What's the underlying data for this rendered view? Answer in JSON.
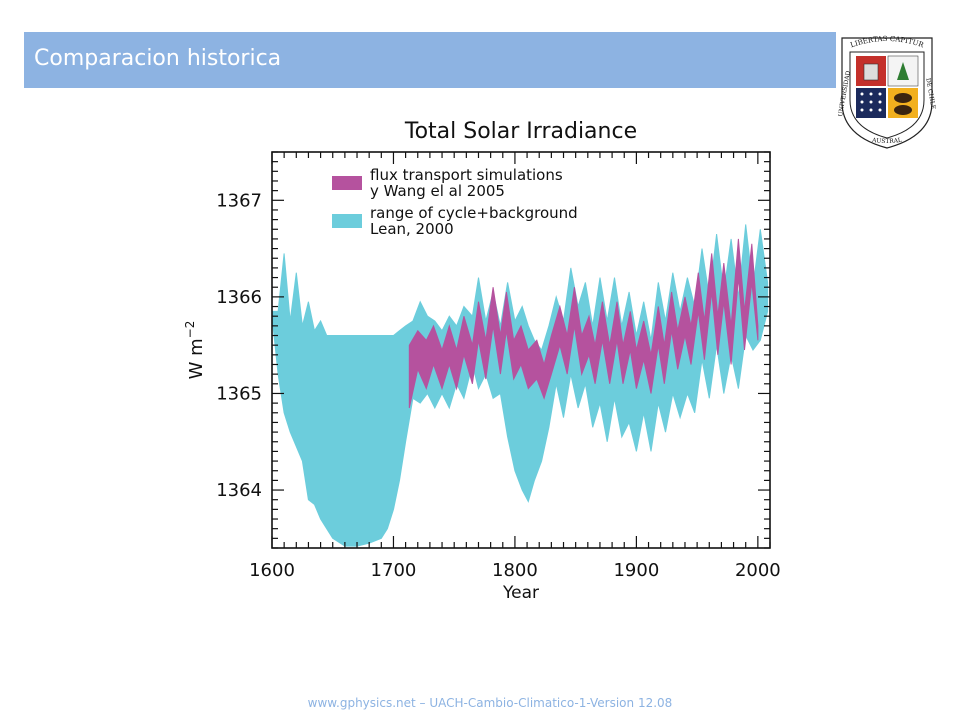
{
  "slide": {
    "title": "Comparacion historica",
    "footer": "www.gphysics.net – UACH-Cambio-Climatico-1-Version 12.08"
  },
  "logo": {
    "top_text": "LIBERTAS CAPITUR",
    "left_text": "UNIVERSIDAD",
    "bottom_text": "AUSTRAL",
    "right_text": "DE CHILE"
  },
  "colors": {
    "title_bar": "#8db3e2",
    "cyan_band": "#6ccddc",
    "magenta_band": "#b5529e"
  },
  "chart_data": {
    "type": "area",
    "title": "Total Solar Irradiance",
    "xlabel": "Year",
    "ylabel": "W m",
    "ylabel_sup": "−2",
    "xlim": [
      1600,
      2010
    ],
    "ylim": [
      1363.4,
      1367.5
    ],
    "xticks": [
      1600,
      1700,
      1800,
      1900,
      2000
    ],
    "yticks": [
      1364,
      1365,
      1366,
      1367
    ],
    "grid": false,
    "legend_position": "top-left",
    "series": [
      {
        "name": "flux transport simulations\ny Wang el al   2005",
        "kind": "band",
        "x": [
          1713,
          1720,
          1727,
          1733,
          1740,
          1746,
          1752,
          1758,
          1765,
          1770,
          1776,
          1782,
          1788,
          1793,
          1799,
          1805,
          1811,
          1818,
          1824,
          1830,
          1837,
          1843,
          1849,
          1855,
          1861,
          1866,
          1872,
          1878,
          1884,
          1889,
          1895,
          1900,
          1906,
          1912,
          1918,
          1923,
          1929,
          1934,
          1940,
          1945,
          1951,
          1956,
          1962,
          1967,
          1972,
          1978,
          1984,
          1989,
          1995,
          2000
        ],
        "upper": [
          1365.5,
          1365.65,
          1365.55,
          1365.7,
          1365.45,
          1365.7,
          1365.45,
          1365.8,
          1365.5,
          1365.95,
          1365.55,
          1366.1,
          1365.6,
          1366.05,
          1365.55,
          1365.7,
          1365.45,
          1365.55,
          1365.3,
          1365.6,
          1365.9,
          1365.6,
          1366.1,
          1365.6,
          1365.8,
          1365.5,
          1365.95,
          1365.5,
          1365.95,
          1365.5,
          1365.85,
          1365.45,
          1365.75,
          1365.4,
          1365.9,
          1365.5,
          1366.05,
          1365.65,
          1366.0,
          1365.7,
          1366.25,
          1365.75,
          1366.45,
          1365.8,
          1366.35,
          1365.7,
          1366.6,
          1365.85,
          1366.55,
          1365.7
        ],
        "lower": [
          1364.85,
          1365.25,
          1365.05,
          1365.3,
          1365.05,
          1365.3,
          1365.05,
          1365.4,
          1365.1,
          1365.55,
          1365.15,
          1365.7,
          1365.2,
          1365.65,
          1365.15,
          1365.3,
          1365.05,
          1365.15,
          1364.95,
          1365.2,
          1365.5,
          1365.2,
          1365.7,
          1365.2,
          1365.4,
          1365.1,
          1365.55,
          1365.1,
          1365.55,
          1365.1,
          1365.45,
          1365.05,
          1365.35,
          1365.0,
          1365.5,
          1365.1,
          1365.65,
          1365.25,
          1365.6,
          1365.3,
          1365.85,
          1365.35,
          1366.05,
          1365.4,
          1365.95,
          1365.3,
          1366.2,
          1365.45,
          1366.15,
          1365.55
        ]
      },
      {
        "name": "range of cycle+background\nLean, 2000",
        "kind": "band",
        "x": [
          1600,
          1605,
          1610,
          1615,
          1620,
          1625,
          1630,
          1635,
          1640,
          1645,
          1650,
          1660,
          1670,
          1680,
          1690,
          1695,
          1700,
          1705,
          1710,
          1716,
          1722,
          1728,
          1734,
          1740,
          1746,
          1752,
          1758,
          1765,
          1770,
          1776,
          1782,
          1788,
          1794,
          1800,
          1806,
          1811,
          1816,
          1822,
          1828,
          1834,
          1840,
          1846,
          1852,
          1858,
          1864,
          1870,
          1876,
          1882,
          1888,
          1894,
          1900,
          1906,
          1912,
          1918,
          1924,
          1930,
          1936,
          1942,
          1948,
          1954,
          1960,
          1966,
          1972,
          1978,
          1984,
          1990,
          1996,
          2002,
          2008
        ],
        "upper": [
          1365.85,
          1365.85,
          1366.45,
          1365.75,
          1366.25,
          1365.7,
          1365.95,
          1365.65,
          1365.75,
          1365.6,
          1365.6,
          1365.6,
          1365.6,
          1365.6,
          1365.6,
          1365.6,
          1365.6,
          1365.65,
          1365.7,
          1365.75,
          1365.95,
          1365.8,
          1365.75,
          1365.65,
          1365.8,
          1365.7,
          1365.9,
          1365.8,
          1366.2,
          1365.75,
          1366.05,
          1365.7,
          1366.15,
          1365.75,
          1365.9,
          1365.7,
          1365.55,
          1365.45,
          1365.7,
          1366.0,
          1365.75,
          1366.3,
          1365.9,
          1366.15,
          1365.7,
          1366.2,
          1365.75,
          1366.2,
          1365.7,
          1366.05,
          1365.6,
          1365.95,
          1365.55,
          1366.15,
          1365.75,
          1366.25,
          1365.85,
          1366.2,
          1365.9,
          1366.5,
          1366.0,
          1366.65,
          1366.05,
          1366.6,
          1366.0,
          1366.75,
          1366.1,
          1366.7,
          1366.15
        ],
        "lower": [
          1365.8,
          1365.2,
          1364.8,
          1364.6,
          1364.45,
          1364.3,
          1363.9,
          1363.85,
          1363.7,
          1363.6,
          1363.5,
          1363.42,
          1363.42,
          1363.45,
          1363.5,
          1363.6,
          1363.8,
          1364.1,
          1364.5,
          1364.95,
          1364.9,
          1365.0,
          1364.85,
          1365.0,
          1364.85,
          1365.1,
          1364.95,
          1365.3,
          1365.05,
          1365.2,
          1364.95,
          1365.0,
          1364.55,
          1364.2,
          1364.0,
          1363.88,
          1364.1,
          1364.3,
          1364.65,
          1365.1,
          1364.75,
          1365.2,
          1364.85,
          1365.1,
          1364.65,
          1364.9,
          1364.5,
          1364.95,
          1364.55,
          1364.7,
          1364.4,
          1364.8,
          1364.4,
          1364.9,
          1364.6,
          1365.0,
          1364.75,
          1365.0,
          1364.8,
          1365.35,
          1364.95,
          1365.5,
          1365.0,
          1365.4,
          1365.05,
          1365.6,
          1365.45,
          1365.55,
          1365.85
        ]
      }
    ]
  }
}
